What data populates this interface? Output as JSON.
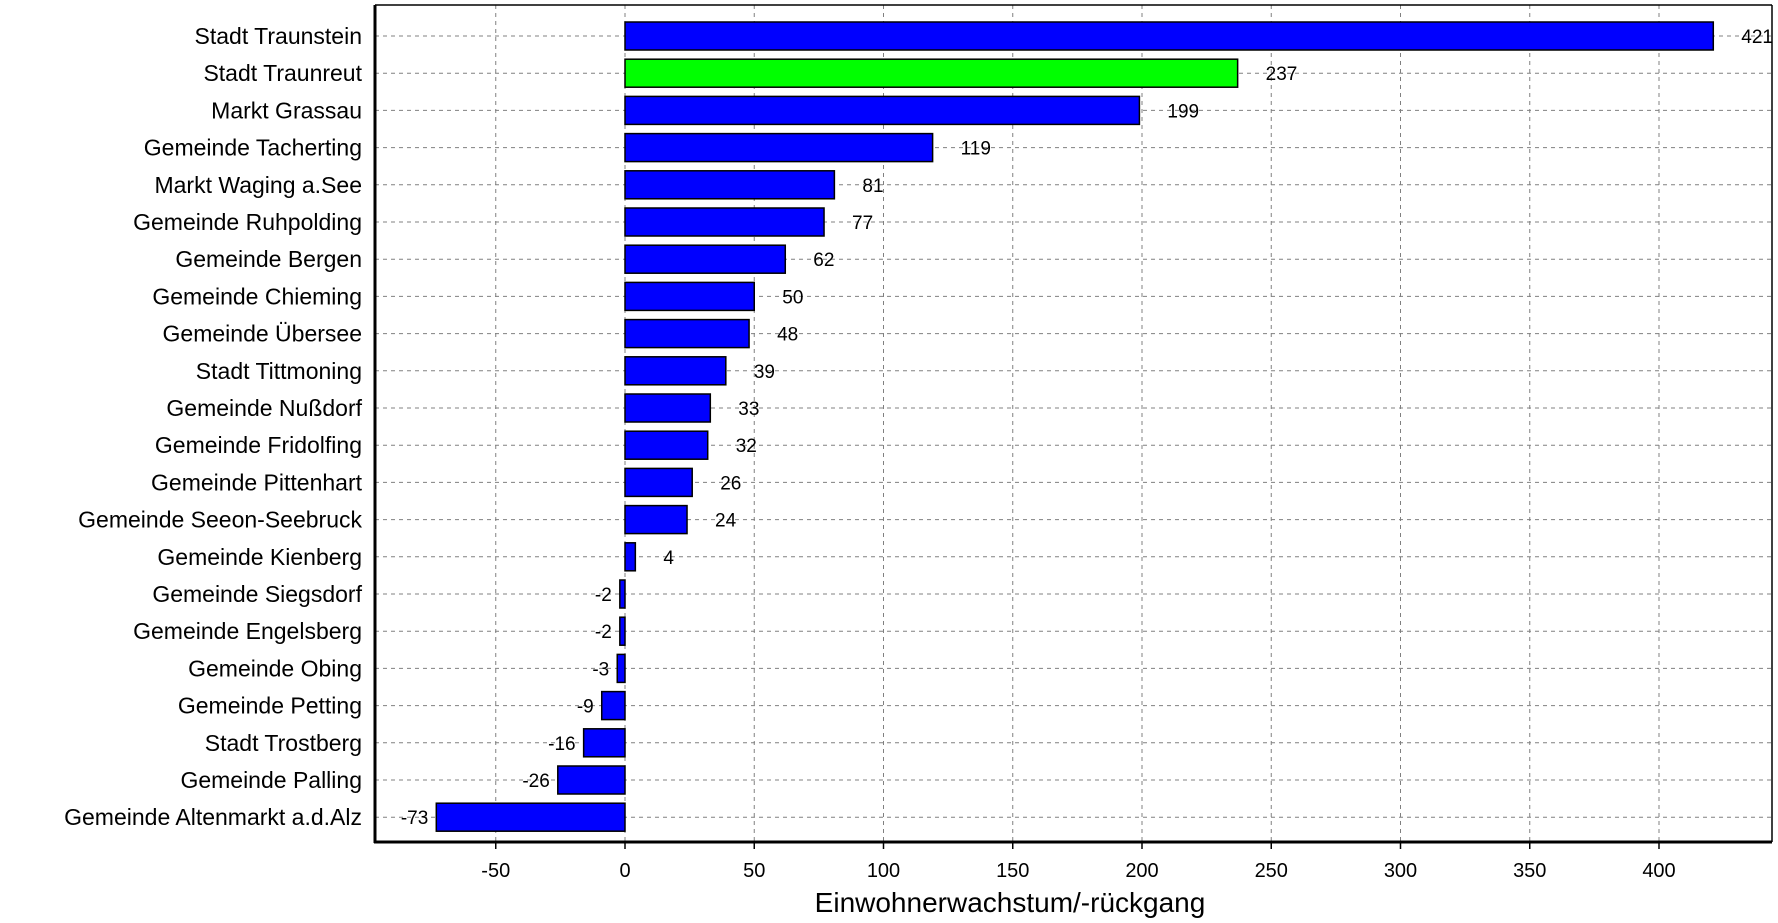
{
  "chart_data": {
    "type": "bar",
    "orientation": "horizontal",
    "title": "",
    "xlabel": "Einwohnerwachstum/-rückgang",
    "ylabel": "",
    "xlim": [
      -95,
      445
    ],
    "xticks": [
      -50,
      0,
      50,
      100,
      150,
      200,
      250,
      300,
      350,
      400
    ],
    "grid": true,
    "categories": [
      "Stadt Traunstein",
      "Stadt Traunreut",
      "Markt Grassau",
      "Gemeinde Tacherting",
      "Markt Waging a.See",
      "Gemeinde Ruhpolding",
      "Gemeinde Bergen",
      "Gemeinde Chieming",
      "Gemeinde Übersee",
      "Stadt Tittmoning",
      "Gemeinde Nußdorf",
      "Gemeinde Fridolfing",
      "Gemeinde Pittenhart",
      "Gemeinde Seeon-Seebruck",
      "Gemeinde Kienberg",
      "Gemeinde Siegsdorf",
      "Gemeinde Engelsberg",
      "Gemeinde Obing",
      "Gemeinde Petting",
      "Stadt Trostberg",
      "Gemeinde Palling",
      "Gemeinde Altenmarkt a.d.Alz"
    ],
    "values": [
      421,
      237,
      199,
      119,
      81,
      77,
      62,
      50,
      48,
      39,
      33,
      32,
      26,
      24,
      4,
      -2,
      -2,
      -3,
      -9,
      -16,
      -26,
      -73
    ],
    "value_labels": [
      "421",
      "237",
      "199",
      "119",
      "81",
      "77",
      "62",
      "50",
      "48",
      "39",
      "33",
      "32",
      "26",
      "24",
      "4",
      "-2",
      "-2",
      "-3",
      "-9",
      "-16",
      "-26",
      "-73"
    ],
    "highlight_index": 1,
    "colors": {
      "bar": "#0000ff",
      "highlight": "#00ff00",
      "bar_border": "#000000",
      "grid": "#808080",
      "frame": "#000000"
    }
  }
}
